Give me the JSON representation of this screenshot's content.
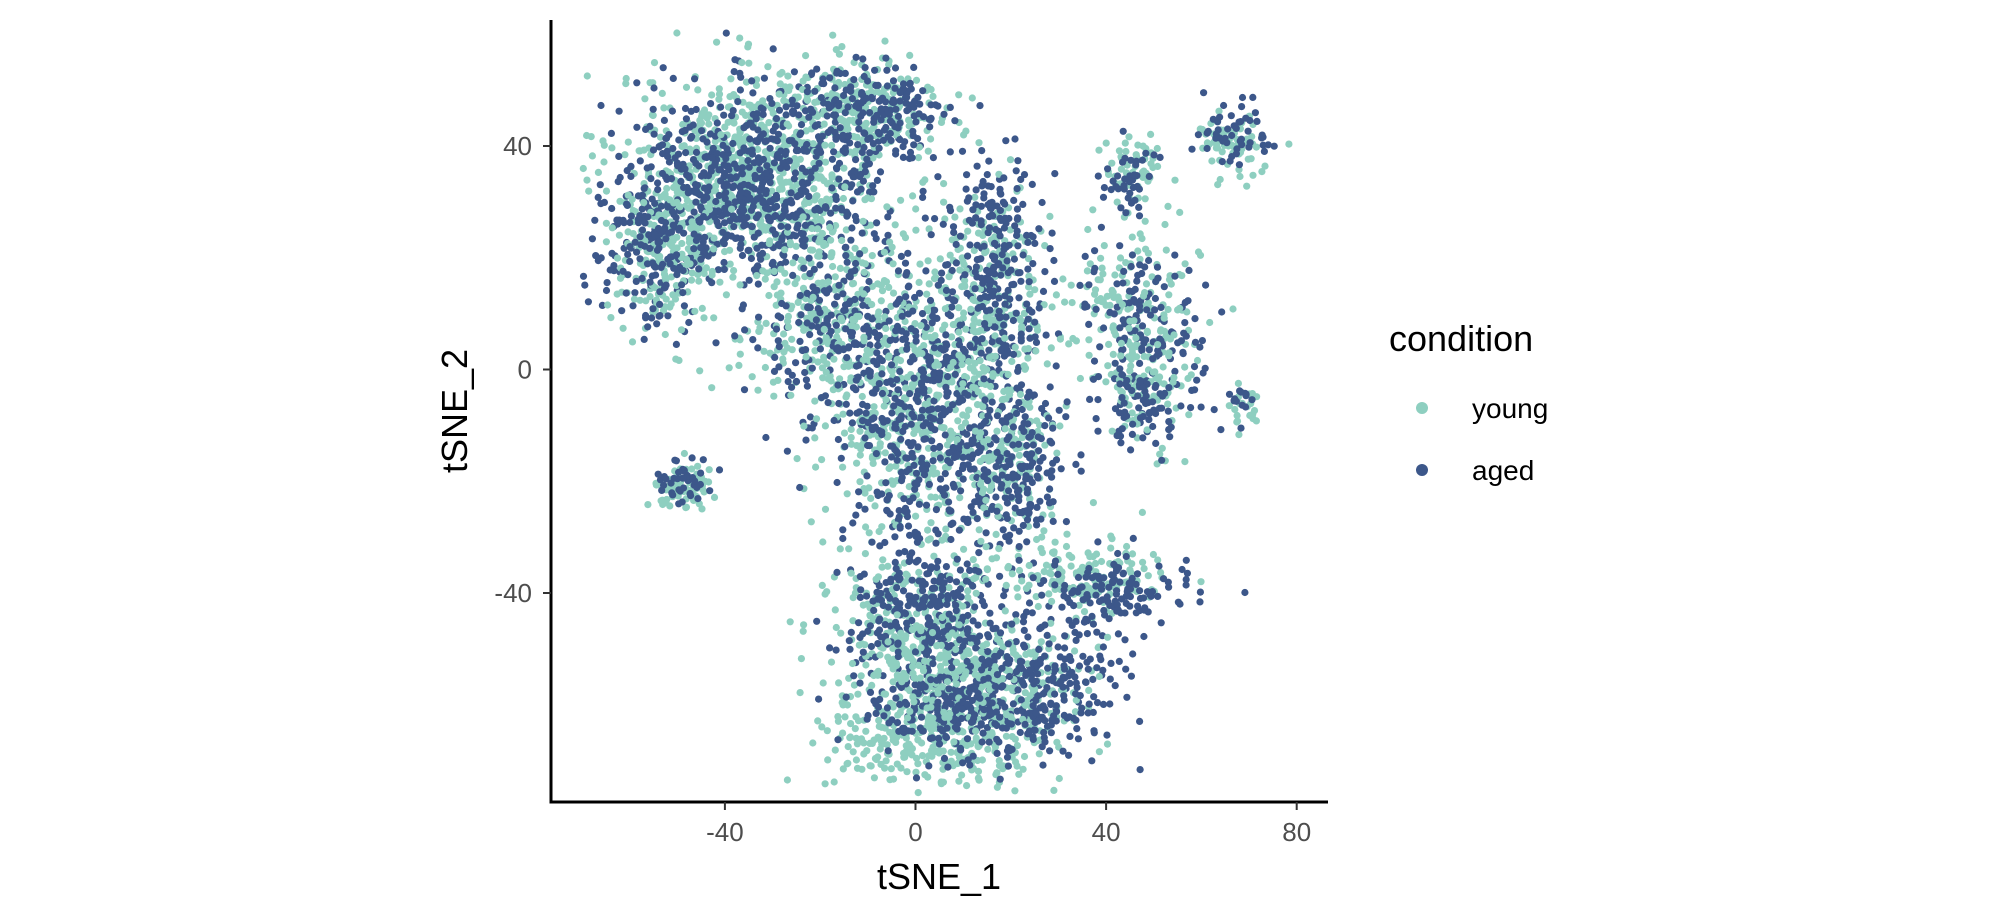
{
  "chart_data": {
    "type": "scatter",
    "title": "",
    "xlabel": "tSNE_1",
    "ylabel": "tSNE_2",
    "xlim": [
      -72,
      87
    ],
    "ylim": [
      -78,
      63
    ],
    "xticks": [
      -40,
      0,
      40,
      80
    ],
    "yticks": [
      -40,
      0,
      40
    ],
    "xtick_labels": [
      "-40",
      "0",
      "40",
      "80"
    ],
    "ytick_labels": [
      "-40",
      "0",
      "40"
    ],
    "grid": false,
    "legend": {
      "title": "condition",
      "placement": "right",
      "entries": [
        "young",
        "aged"
      ]
    },
    "colors": {
      "young": "#8ecfc0",
      "aged": "#3c578a"
    },
    "series": [
      {
        "name": "young",
        "clusters": [
          {
            "x": -35,
            "y": 35,
            "sx": 14,
            "sy": 9,
            "n": 700
          },
          {
            "x": -53,
            "y": 20,
            "sx": 6,
            "sy": 6,
            "n": 150
          },
          {
            "x": -12,
            "y": 47,
            "sx": 9,
            "sy": 5,
            "n": 200
          },
          {
            "x": -20,
            "y": 10,
            "sx": 10,
            "sy": 8,
            "n": 230
          },
          {
            "x": 0,
            "y": -5,
            "sx": 10,
            "sy": 14,
            "n": 500
          },
          {
            "x": 15,
            "y": 15,
            "sx": 6,
            "sy": 10,
            "n": 200
          },
          {
            "x": 20,
            "y": -15,
            "sx": 5,
            "sy": 8,
            "n": 150
          },
          {
            "x": 45,
            "y": 10,
            "sx": 7,
            "sy": 8,
            "n": 150
          },
          {
            "x": 48,
            "y": -2,
            "sx": 4,
            "sy": 8,
            "n": 80
          },
          {
            "x": 46,
            "y": 36,
            "sx": 3,
            "sy": 3,
            "n": 50
          },
          {
            "x": 67,
            "y": 40,
            "sx": 4,
            "sy": 3,
            "n": 60
          },
          {
            "x": 69,
            "y": -7,
            "sx": 1.5,
            "sy": 2,
            "n": 20
          },
          {
            "x": -49,
            "y": -21,
            "sx": 3,
            "sy": 2,
            "n": 80
          },
          {
            "x": 5,
            "y": -65,
            "sx": 12,
            "sy": 5,
            "n": 380
          },
          {
            "x": 0,
            "y": -47,
            "sx": 9,
            "sy": 6,
            "n": 250
          },
          {
            "x": 35,
            "y": -37,
            "sx": 9,
            "sy": 3,
            "n": 150
          },
          {
            "x": 15,
            "y": -55,
            "sx": 12,
            "sy": 5,
            "n": 200
          }
        ]
      },
      {
        "name": "aged",
        "clusters": [
          {
            "x": -35,
            "y": 32,
            "sx": 14,
            "sy": 9,
            "n": 650
          },
          {
            "x": -55,
            "y": 20,
            "sx": 6,
            "sy": 6,
            "n": 120
          },
          {
            "x": -10,
            "y": 45,
            "sx": 9,
            "sy": 5,
            "n": 200
          },
          {
            "x": -15,
            "y": 5,
            "sx": 9,
            "sy": 8,
            "n": 200
          },
          {
            "x": 5,
            "y": -8,
            "sx": 10,
            "sy": 14,
            "n": 550
          },
          {
            "x": 18,
            "y": 20,
            "sx": 5,
            "sy": 9,
            "n": 200
          },
          {
            "x": 22,
            "y": -18,
            "sx": 5,
            "sy": 7,
            "n": 150
          },
          {
            "x": 48,
            "y": 8,
            "sx": 7,
            "sy": 8,
            "n": 150
          },
          {
            "x": 48,
            "y": -8,
            "sx": 4,
            "sy": 4,
            "n": 60
          },
          {
            "x": 44,
            "y": 34,
            "sx": 3,
            "sy": 3,
            "n": 40
          },
          {
            "x": 68,
            "y": 42,
            "sx": 4,
            "sy": 3,
            "n": 50
          },
          {
            "x": 68,
            "y": -6,
            "sx": 1.5,
            "sy": 2,
            "n": 15
          },
          {
            "x": -48,
            "y": -20,
            "sx": 3,
            "sy": 2,
            "n": 40
          },
          {
            "x": 10,
            "y": -60,
            "sx": 12,
            "sy": 5,
            "n": 300
          },
          {
            "x": 2,
            "y": -43,
            "sx": 9,
            "sy": 5,
            "n": 220
          },
          {
            "x": 40,
            "y": -40,
            "sx": 8,
            "sy": 3,
            "n": 120
          },
          {
            "x": 25,
            "y": -55,
            "sx": 10,
            "sy": 6,
            "n": 200
          }
        ]
      }
    ]
  }
}
